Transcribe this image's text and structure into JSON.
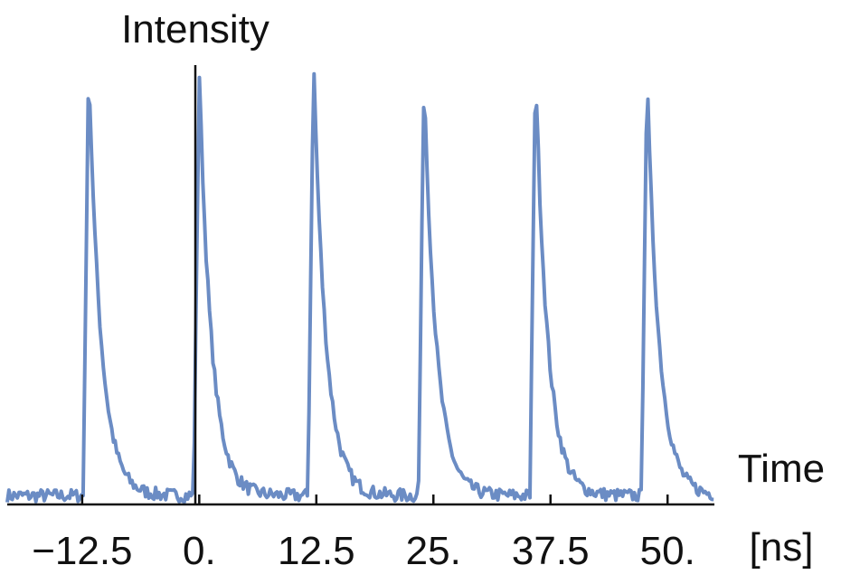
{
  "chart_data": {
    "type": "line",
    "y_axis_label": "Intensity",
    "x_axis_label": "Time",
    "x_unit_label": "[ns]",
    "x_ticks": [
      {
        "value": -12.5,
        "label": "−12.5"
      },
      {
        "value": 0,
        "label": "0."
      },
      {
        "value": 12.5,
        "label": "12.5"
      },
      {
        "value": 25,
        "label": "25."
      },
      {
        "value": 37.5,
        "label": "37.5"
      },
      {
        "value": 50,
        "label": "50."
      }
    ],
    "xlim": [
      -20.5,
      55
    ],
    "ylim": [
      0,
      1.0
    ],
    "grid": false,
    "series": [
      {
        "name": "Intensity",
        "color": "#6b8cc4",
        "pulse_period_ns": 12.3,
        "pulse_peaks": [
          {
            "t": -11.8,
            "intensity": 0.99
          },
          {
            "t": 0.0,
            "intensity": 0.97
          },
          {
            "t": 12.2,
            "intensity": 1.0
          },
          {
            "t": 24.0,
            "intensity": 0.96
          },
          {
            "t": 35.9,
            "intensity": 0.98
          },
          {
            "t": 47.8,
            "intensity": 0.96
          }
        ],
        "rise_width_ns": 0.6,
        "decay_constant_ns": 1.3,
        "baseline": 0.02
      }
    ]
  }
}
